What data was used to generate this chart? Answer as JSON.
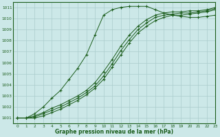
{
  "title": "Graphe pression niveau de la mer (hPa)",
  "background_color": "#cce8e8",
  "grid_color": "#aacccc",
  "line_color": "#1a5c1a",
  "marker_color": "#1a5c1a",
  "xlim": [
    -0.5,
    23
  ],
  "ylim": [
    1000.5,
    1011.5
  ],
  "yticks": [
    1001,
    1002,
    1003,
    1004,
    1005,
    1006,
    1007,
    1008,
    1009,
    1010,
    1011
  ],
  "xticks": [
    0,
    1,
    2,
    3,
    4,
    5,
    6,
    7,
    8,
    9,
    10,
    11,
    12,
    13,
    14,
    15,
    16,
    17,
    18,
    19,
    20,
    21,
    22,
    23
  ],
  "series": [
    {
      "x": [
        0,
        1,
        2,
        3,
        4,
        5,
        6,
        7,
        8,
        9,
        10,
        11,
        12,
        13,
        14,
        15,
        16,
        17,
        18,
        19,
        20,
        21,
        22,
        23
      ],
      "y": [
        1001.0,
        1001.0,
        1001.4,
        1002.0,
        1002.8,
        1003.5,
        1004.5,
        1005.5,
        1006.7,
        1008.5,
        1010.3,
        1010.8,
        1011.0,
        1011.1,
        1011.1,
        1011.1,
        1010.8,
        1010.5,
        1010.3,
        1010.2,
        1010.1,
        1010.1,
        1010.2,
        1010.3
      ]
    },
    {
      "x": [
        0,
        1,
        2,
        3,
        4,
        5,
        6,
        7,
        8,
        9,
        10,
        11,
        12,
        13,
        14,
        15,
        16,
        17,
        18,
        19,
        20,
        21,
        22,
        23
      ],
      "y": [
        1001.0,
        1001.0,
        1001.2,
        1001.5,
        1001.9,
        1002.2,
        1002.6,
        1003.0,
        1003.5,
        1004.2,
        1005.2,
        1006.3,
        1007.5,
        1008.5,
        1009.3,
        1009.9,
        1010.3,
        1010.5,
        1010.6,
        1010.6,
        1010.7,
        1010.7,
        1010.8,
        1011.0
      ]
    },
    {
      "x": [
        0,
        1,
        2,
        3,
        4,
        5,
        6,
        7,
        8,
        9,
        10,
        11,
        12,
        13,
        14,
        15,
        16,
        17,
        18,
        19,
        20,
        21,
        22,
        23
      ],
      "y": [
        1001.0,
        1001.0,
        1001.1,
        1001.4,
        1001.7,
        1002.0,
        1002.4,
        1002.8,
        1003.3,
        1003.9,
        1004.8,
        1005.9,
        1007.1,
        1008.1,
        1009.0,
        1009.6,
        1010.1,
        1010.3,
        1010.4,
        1010.5,
        1010.5,
        1010.6,
        1010.7,
        1010.9
      ]
    },
    {
      "x": [
        0,
        1,
        2,
        3,
        4,
        5,
        6,
        7,
        8,
        9,
        10,
        11,
        12,
        13,
        14,
        15,
        16,
        17,
        18,
        19,
        20,
        21,
        22,
        23
      ],
      "y": [
        1001.0,
        1001.0,
        1001.0,
        1001.2,
        1001.5,
        1001.8,
        1002.2,
        1002.6,
        1003.1,
        1003.7,
        1004.5,
        1005.6,
        1006.7,
        1007.8,
        1008.7,
        1009.3,
        1009.8,
        1010.1,
        1010.3,
        1010.3,
        1010.4,
        1010.5,
        1010.6,
        1010.8
      ]
    }
  ]
}
